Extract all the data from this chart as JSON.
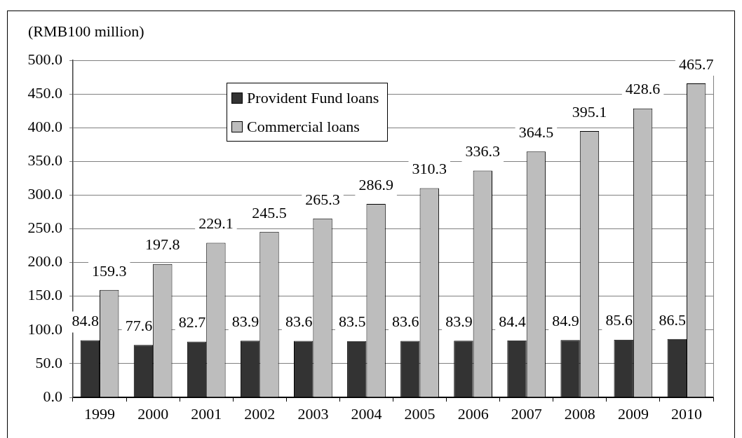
{
  "chart_data": {
    "type": "bar",
    "ylabel": "(RMB100 million)",
    "categories": [
      "1999",
      "2000",
      "2001",
      "2002",
      "2003",
      "2004",
      "2005",
      "2006",
      "2007",
      "2008",
      "2009",
      "2010"
    ],
    "series": [
      {
        "name": "Provident Fund loans",
        "color": "#333333",
        "values": [
          84.8,
          77.6,
          82.7,
          83.9,
          83.6,
          83.5,
          83.6,
          83.9,
          84.4,
          84.9,
          85.6,
          86.5
        ]
      },
      {
        "name": "Commercial loans",
        "color": "#bdbdbd",
        "values": [
          159.3,
          197.8,
          229.1,
          245.5,
          265.3,
          286.9,
          310.3,
          336.3,
          364.5,
          395.1,
          428.6,
          465.7
        ]
      }
    ],
    "ylim": [
      0,
      500
    ],
    "yticks": [
      {
        "value": 0,
        "label": "0.0"
      },
      {
        "value": 50,
        "label": "50.0"
      },
      {
        "value": 100,
        "label": "100.0"
      },
      {
        "value": 150,
        "label": "150.0"
      },
      {
        "value": 200,
        "label": "200.0"
      },
      {
        "value": 250,
        "label": "250.0"
      },
      {
        "value": 300,
        "label": "300.0"
      },
      {
        "value": 350,
        "label": "350.0"
      },
      {
        "value": 400,
        "label": "400.0"
      },
      {
        "value": 450,
        "label": "450.0"
      },
      {
        "value": 500,
        "label": "500.0"
      }
    ],
    "grid": "y",
    "legend": "top left",
    "data_labels": true
  }
}
